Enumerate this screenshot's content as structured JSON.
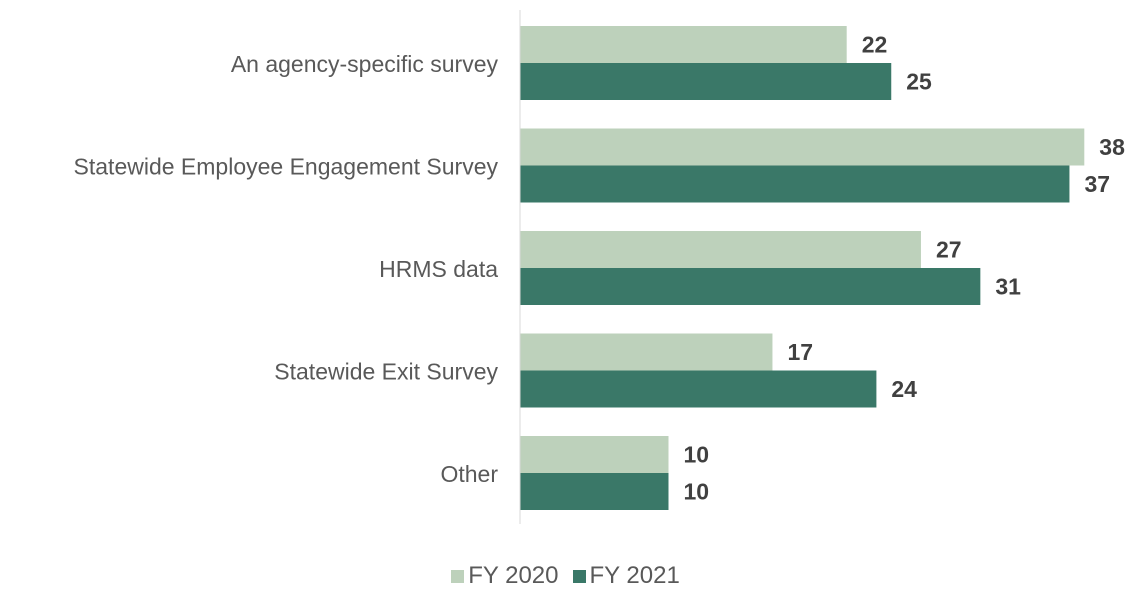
{
  "chart_data": {
    "type": "bar",
    "orientation": "horizontal",
    "categories": [
      "An agency-specific survey",
      "Statewide Employee Engagement Survey",
      "HRMS data",
      "Statewide Exit Survey",
      "Other"
    ],
    "series": [
      {
        "name": "FY 2020",
        "values": [
          22,
          38,
          27,
          17,
          10
        ],
        "color": "#bdd1bb"
      },
      {
        "name": "FY 2021",
        "values": [
          25,
          37,
          31,
          24,
          10
        ],
        "color": "#3a7868"
      }
    ],
    "title": "",
    "xlabel": "",
    "ylabel": "",
    "xlim": [
      0,
      38
    ],
    "grid": false,
    "data_labels": true,
    "legend_position": "bottom"
  },
  "colors": {
    "axis": "#d9d9d9",
    "category_label": "#595959",
    "value_label": "#404040"
  }
}
